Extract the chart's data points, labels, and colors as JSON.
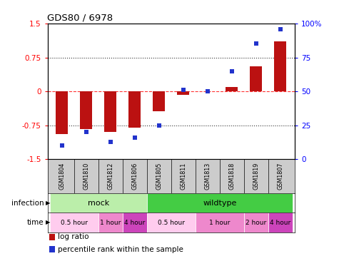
{
  "title": "GDS80 / 6978",
  "samples": [
    "GSM1804",
    "GSM1810",
    "GSM1812",
    "GSM1806",
    "GSM1805",
    "GSM1811",
    "GSM1813",
    "GSM1818",
    "GSM1819",
    "GSM1807"
  ],
  "log_ratio": [
    -0.95,
    -0.83,
    -0.9,
    -0.8,
    -0.44,
    -0.07,
    0.0,
    0.1,
    0.55,
    1.1
  ],
  "percentile": [
    10,
    20,
    13,
    16,
    25,
    51,
    50,
    65,
    85,
    96
  ],
  "ylim_left": [
    -1.5,
    1.5
  ],
  "ylim_right": [
    0,
    100
  ],
  "yticks_left": [
    -1.5,
    -0.75,
    0,
    0.75,
    1.5
  ],
  "yticks_right": [
    0,
    25,
    50,
    75,
    100
  ],
  "yticklabels_right": [
    "0",
    "25",
    "50",
    "75",
    "100%"
  ],
  "bar_color": "#bb1111",
  "dot_color": "#2233cc",
  "infection_groups": [
    {
      "label": "mock",
      "start": 0,
      "end": 4,
      "color": "#bbeeaa"
    },
    {
      "label": "wildtype",
      "start": 4,
      "end": 10,
      "color": "#44cc44"
    }
  ],
  "time_groups": [
    {
      "label": "0.5 hour",
      "start": 0,
      "end": 2,
      "color": "#ffaadd"
    },
    {
      "label": "1 hour",
      "start": 2,
      "end": 3,
      "color": "#ee88cc"
    },
    {
      "label": "4 hour",
      "start": 3,
      "end": 4,
      "color": "#cc44bb"
    },
    {
      "label": "0.5 hour",
      "start": 4,
      "end": 6,
      "color": "#ffaadd"
    },
    {
      "label": "1 hour",
      "start": 6,
      "end": 8,
      "color": "#ee88cc"
    },
    {
      "label": "2 hour",
      "start": 8,
      "end": 9,
      "color": "#ee88cc"
    },
    {
      "label": "4 hour",
      "start": 9,
      "end": 10,
      "color": "#cc44bb"
    }
  ],
  "legend_items": [
    {
      "label": "log ratio",
      "color": "#bb1111"
    },
    {
      "label": "percentile rank within the sample",
      "color": "#2233cc"
    }
  ],
  "bar_width": 0.5
}
